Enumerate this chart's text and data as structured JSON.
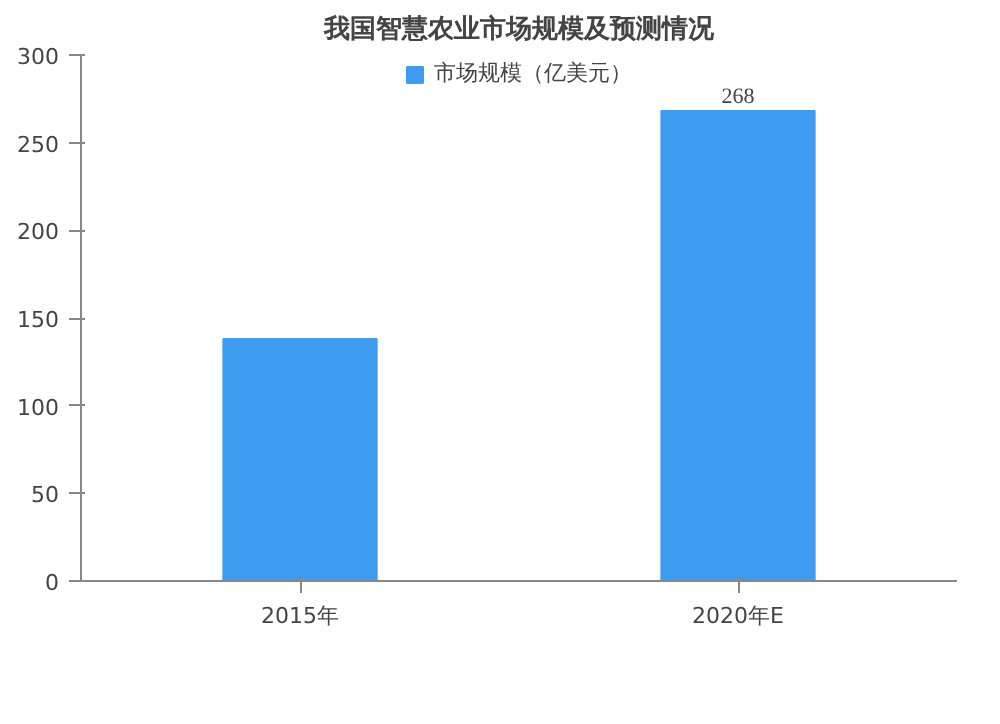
{
  "chart_data": {
    "type": "bar",
    "title": "我国智慧农业市场规模及预测情况",
    "categories": [
      "2015年",
      "2020年E"
    ],
    "series": [
      {
        "name": "市场规模（亿美元）",
        "color": "#3e9cf0",
        "values": [
          138,
          268
        ],
        "value_labels": [
          null,
          "268"
        ]
      }
    ],
    "ylim": [
      0,
      300
    ],
    "yticks": [
      0,
      50,
      100,
      150,
      200,
      250,
      300
    ],
    "grid": false,
    "legend": "top"
  }
}
